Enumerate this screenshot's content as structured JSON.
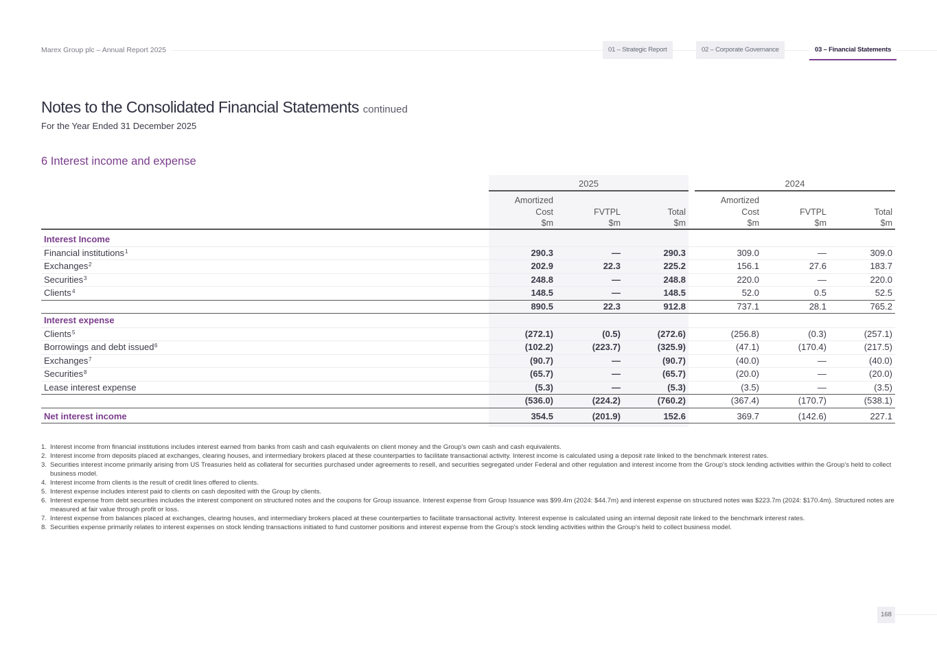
{
  "header": {
    "brand": "Marex Group plc – Annual Report 2025",
    "tabs": [
      {
        "label": "01 – Strategic Report"
      },
      {
        "label": "02 – Corporate Governance"
      },
      {
        "label": "03 – Financial Statements"
      }
    ]
  },
  "title": "Notes to the Consolidated Financial Statements",
  "title_suffix": "continued",
  "subtitle": "For the Year Ended 31 December 2025",
  "section": "6 Interest income and expense",
  "table": {
    "years": [
      "2025",
      "2024"
    ],
    "columns": [
      [
        "Amortized",
        "Cost",
        "$m"
      ],
      [
        "",
        "FVTPL",
        "$m"
      ],
      [
        "",
        "Total",
        "$m"
      ]
    ],
    "rows": [
      {
        "type": "section",
        "label": "Interest Income"
      },
      {
        "type": "item",
        "label": "Financial institutions",
        "sup": "1",
        "values": [
          "290.3",
          "—",
          "290.3",
          "309.0",
          "—",
          "309.0"
        ]
      },
      {
        "type": "item",
        "label": "Exchanges",
        "sup": "2",
        "values": [
          "202.9",
          "22.3",
          "225.2",
          "156.1",
          "27.6",
          "183.7"
        ]
      },
      {
        "type": "item",
        "label": "Securities",
        "sup": "3",
        "values": [
          "248.8",
          "—",
          "248.8",
          "220.0",
          "—",
          "220.0"
        ]
      },
      {
        "type": "item",
        "label": "Clients",
        "sup": "4",
        "values": [
          "148.5",
          "—",
          "148.5",
          "52.0",
          "0.5",
          "52.5"
        ]
      },
      {
        "type": "total",
        "label": "",
        "values": [
          "890.5",
          "22.3",
          "912.8",
          "737.1",
          "28.1",
          "765.2"
        ]
      },
      {
        "type": "section",
        "label": "Interest expense"
      },
      {
        "type": "item",
        "label": "Clients",
        "sup": "5",
        "values": [
          "(272.1)",
          "(0.5)",
          "(272.6)",
          "(256.8)",
          "(0.3)",
          "(257.1)"
        ]
      },
      {
        "type": "item",
        "label": "Borrowings and debt issued",
        "sup": "6",
        "values": [
          "(102.2)",
          "(223.7)",
          "(325.9)",
          "(47.1)",
          "(170.4)",
          "(217.5)"
        ]
      },
      {
        "type": "item",
        "label": "Exchanges",
        "sup": "7",
        "values": [
          "(90.7)",
          "—",
          "(90.7)",
          "(40.0)",
          "—",
          "(40.0)"
        ]
      },
      {
        "type": "item",
        "label": "Securities",
        "sup": "8",
        "values": [
          "(65.7)",
          "—",
          "(65.7)",
          "(20.0)",
          "—",
          "(20.0)"
        ]
      },
      {
        "type": "item",
        "label": "Lease interest expense",
        "sup": "",
        "values": [
          "(5.3)",
          "—",
          "(5.3)",
          "(3.5)",
          "—",
          "(3.5)"
        ]
      },
      {
        "type": "total",
        "label": "",
        "values": [
          "(536.0)",
          "(224.2)",
          "(760.2)",
          "(367.4)",
          "(170.7)",
          "(538.1)"
        ]
      },
      {
        "type": "net",
        "label": "Net interest income",
        "values": [
          "354.5",
          "(201.9)",
          "152.6",
          "369.7",
          "(142.6)",
          "227.1"
        ]
      }
    ]
  },
  "notes": [
    "Interest income from financial institutions includes interest earned from banks from cash and cash equivalents on client money and the Group's own cash and cash equivalents.",
    "Interest income from deposits placed at exchanges, clearing houses, and intermediary brokers placed at these counterparties to facilitate transactional activity. Interest income is calculated using a deposit rate linked to the benchmark interest rates.",
    "Securities interest income primarily arising from US Treasuries held as collateral for securities purchased under agreements to resell, and securities segregated under Federal and other regulation and interest income from the Group's stock lending activities within the Group's held to collect business model.",
    "Interest income from clients is the result of credit lines offered to clients.",
    "Interest expense includes interest paid to clients on cash deposited with the Group by clients.",
    "Interest expense from debt securities includes the interest component on structured notes and the coupons for Group issuance. Interest expense from Group Issuance was $99.4m (2024: $44.7m) and interest expense on structured notes was $223.7m (2024: $170.4m). Structured notes are measured at fair value through profit or loss.",
    "Interest expense from balances placed at exchanges, clearing houses, and intermediary brokers placed at these counterparties to facilitate transactional activity. Interest expense is calculated using an internal deposit rate linked to the benchmark interest rates.",
    "Securities expense primarily relates to interest expenses on stock lending transactions initiated to fund customer positions and interest expense from the Group's stock lending activities within the Group's held to collect business model."
  ],
  "page_number": "168"
}
